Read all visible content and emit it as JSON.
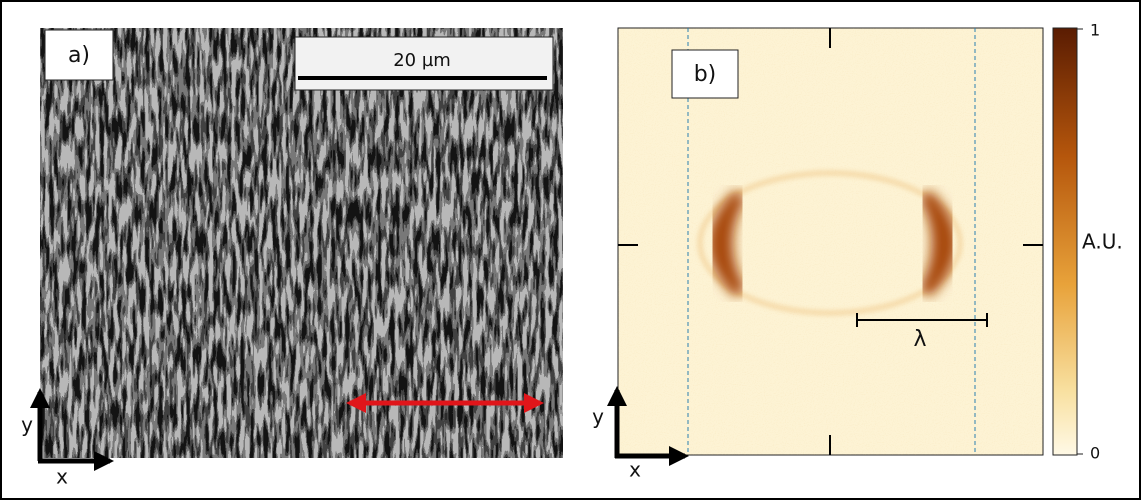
{
  "panel_a": {
    "label": "a)",
    "scale_bar": "20 µm",
    "axes": {
      "x": "x",
      "y": "y"
    }
  },
  "panel_b": {
    "label": "b)",
    "wavelength": "λ",
    "axes": {
      "x": "x",
      "y": "y"
    },
    "colorbar": {
      "max": "1",
      "min": "0",
      "label": "A.U."
    }
  }
}
